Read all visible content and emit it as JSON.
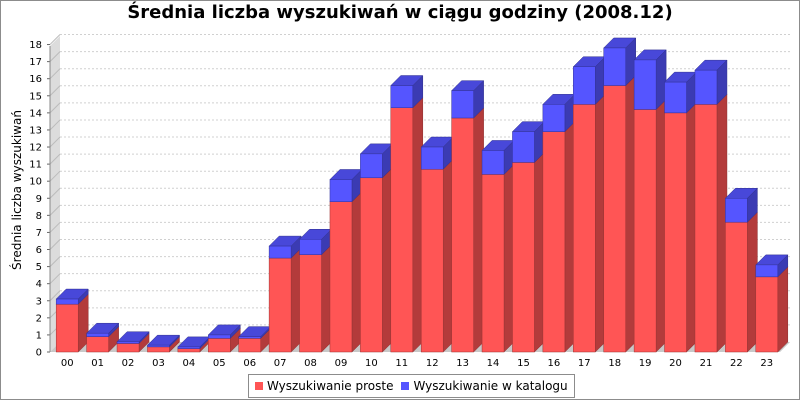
{
  "chart_data": {
    "type": "bar",
    "stacked": true,
    "three_d": true,
    "title": "Średnia liczba wyszukiwań w ciągu godziny (2008.12)",
    "xlabel": "",
    "ylabel": "Średnia liczba wyszukiwań",
    "ylim": [
      0,
      18.5
    ],
    "yticks": [
      0,
      1,
      2,
      3,
      4,
      5,
      6,
      7,
      8,
      9,
      10,
      11,
      12,
      13,
      14,
      15,
      16,
      17,
      18
    ],
    "grid": true,
    "legend_position": "bottom",
    "categories": [
      "00",
      "01",
      "02",
      "03",
      "04",
      "05",
      "06",
      "07",
      "08",
      "09",
      "10",
      "11",
      "12",
      "13",
      "14",
      "15",
      "16",
      "17",
      "18",
      "19",
      "20",
      "21",
      "22",
      "23"
    ],
    "series": [
      {
        "name": "Wyszukiwanie proste",
        "color": "#ff5555",
        "values": [
          2.8,
          0.9,
          0.5,
          0.3,
          0.2,
          0.8,
          0.8,
          5.5,
          5.7,
          8.8,
          10.2,
          14.3,
          10.7,
          13.7,
          10.4,
          11.1,
          12.9,
          14.5,
          15.6,
          14.2,
          14.0,
          14.5,
          7.6,
          4.4
        ]
      },
      {
        "name": "Wyszukiwanie w katalogu",
        "color": "#5555ff",
        "values": [
          0.3,
          0.2,
          0.1,
          0.1,
          0.1,
          0.2,
          0.1,
          0.7,
          0.9,
          1.3,
          1.4,
          1.3,
          1.3,
          1.6,
          1.4,
          1.8,
          1.6,
          2.2,
          2.2,
          2.9,
          1.8,
          2.0,
          1.4,
          0.7
        ]
      }
    ]
  }
}
